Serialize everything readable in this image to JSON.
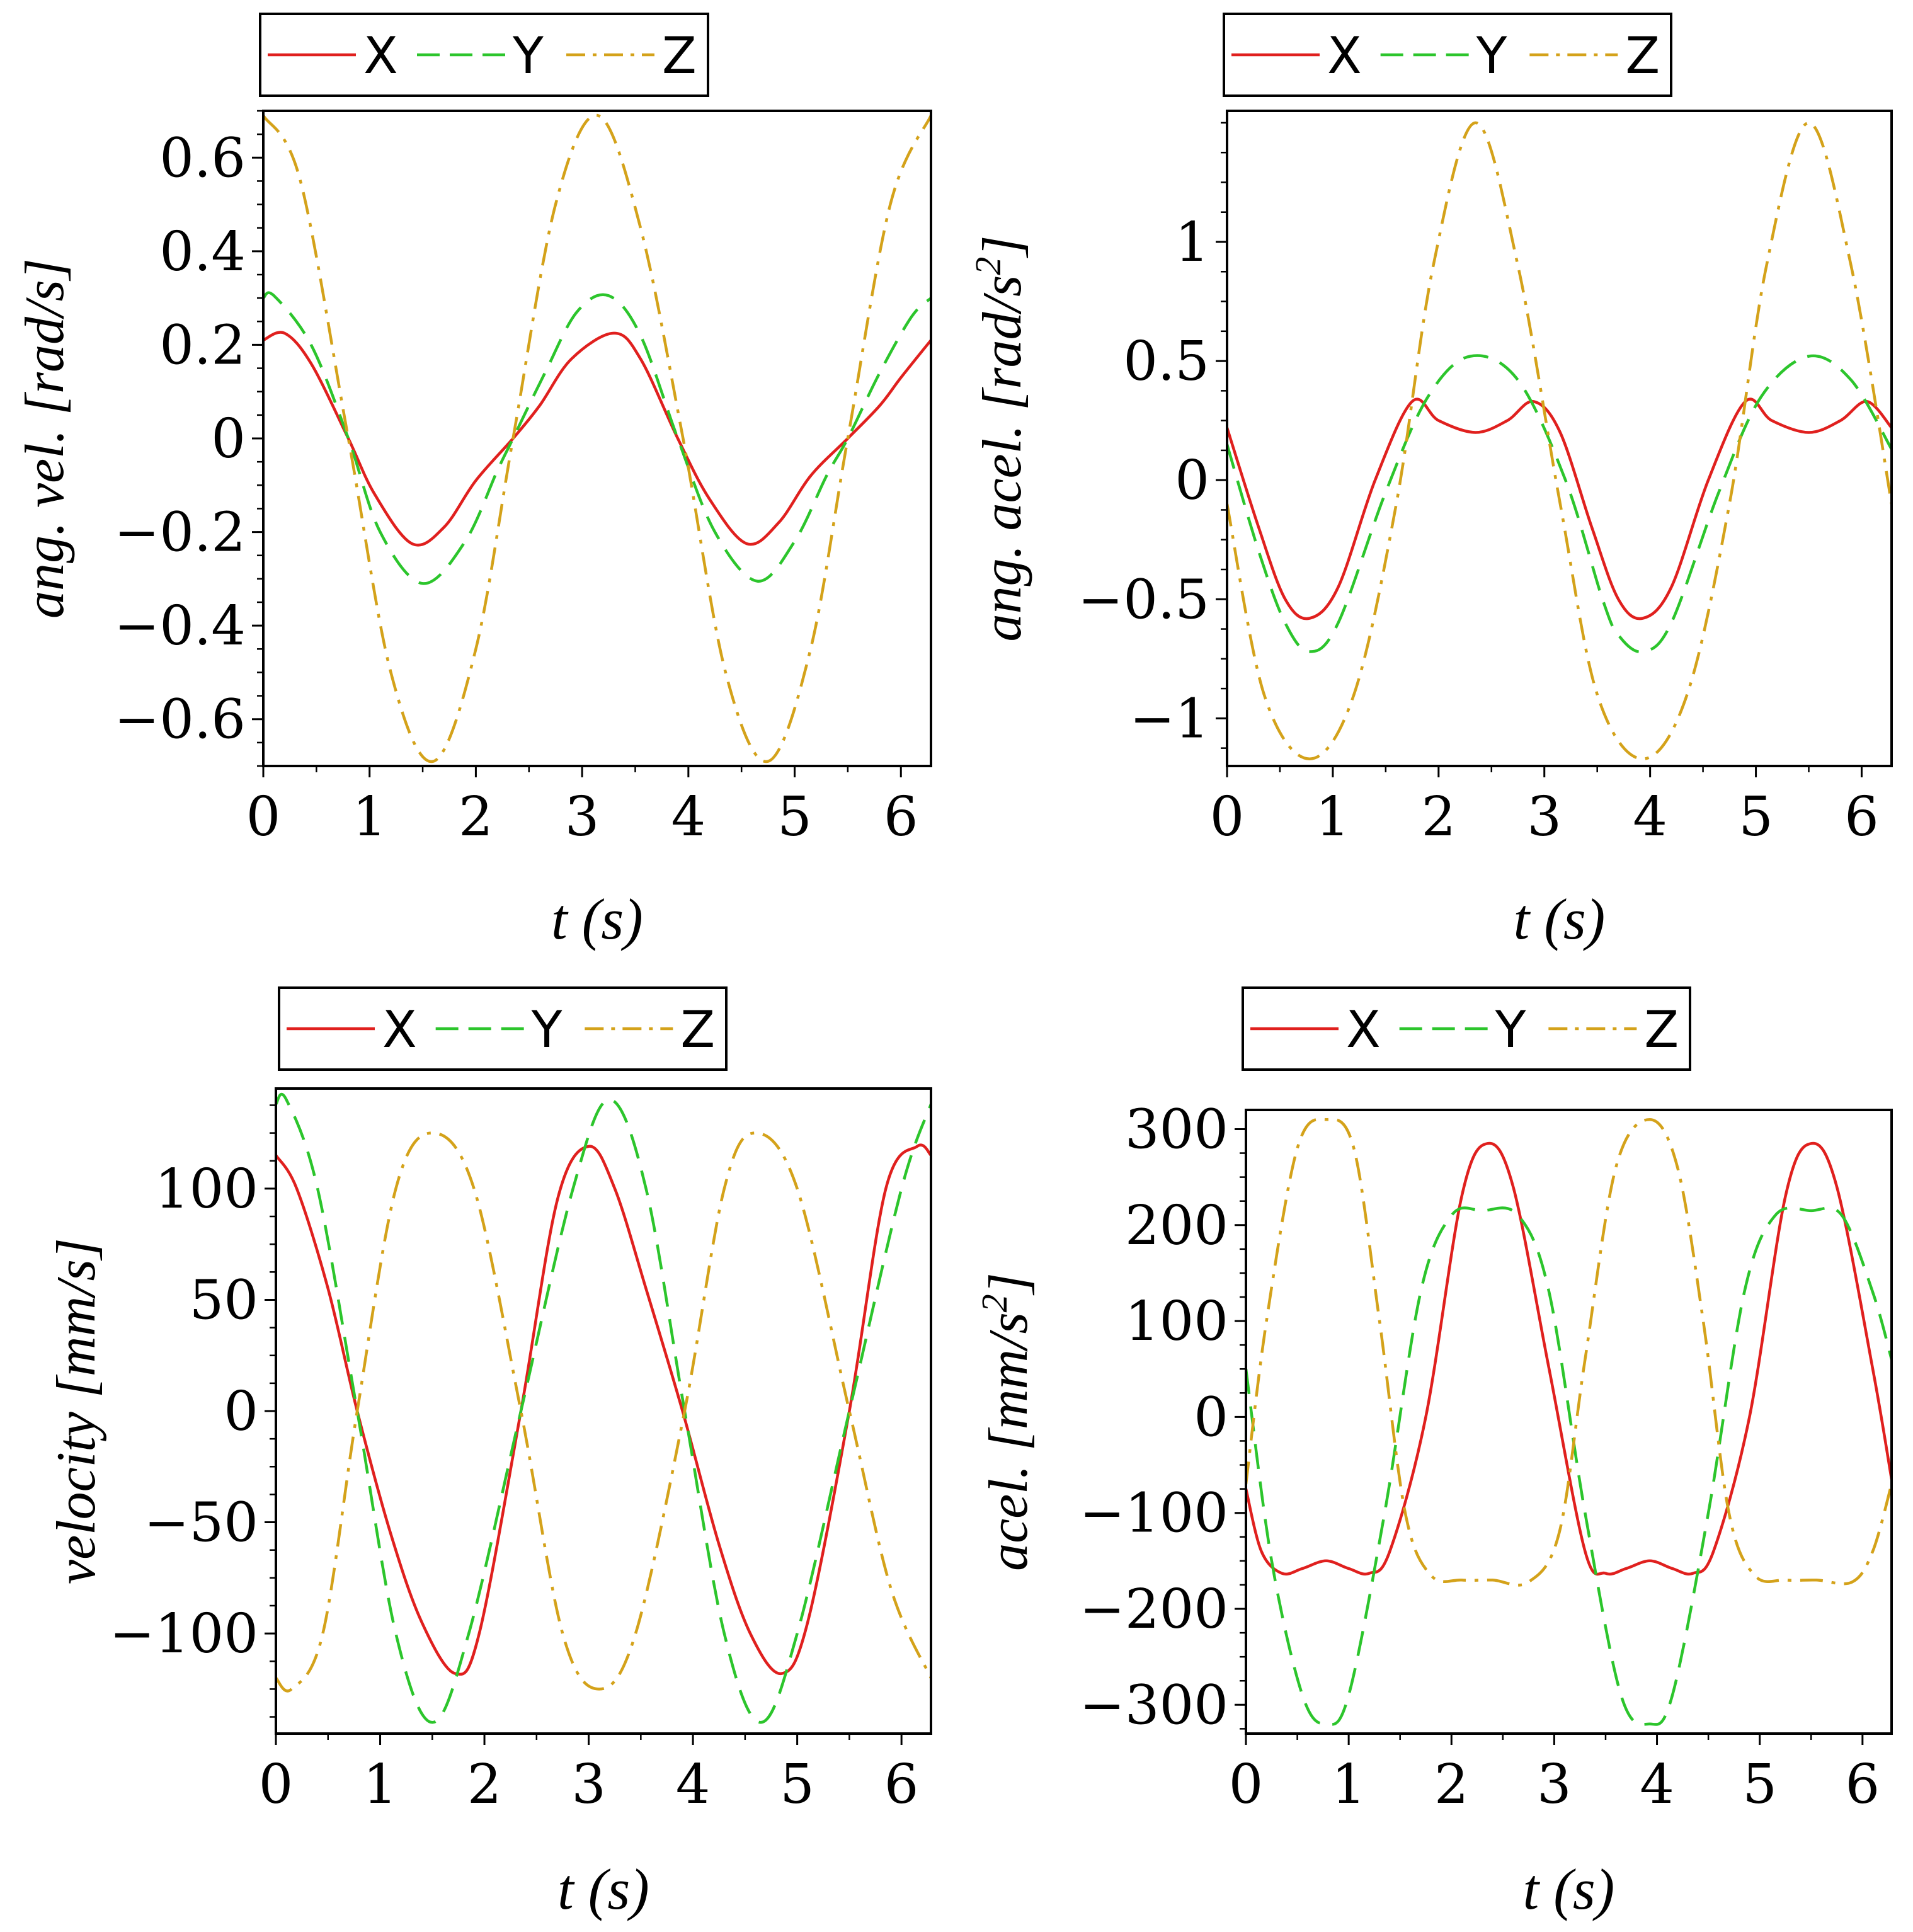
{
  "chart_data": [
    {
      "type": "line",
      "title": "",
      "xlabel": "t (s)",
      "ylabel_main": "ang. vel. [rad/s]",
      "ylabel_sup": "",
      "ylabel_tail": "",
      "xlim": [
        0,
        6.283
      ],
      "ylim": [
        -0.7,
        0.7
      ],
      "xticks": [
        0,
        1,
        2,
        3,
        4,
        5,
        6
      ],
      "xtick_labels": [
        "0",
        "1",
        "2",
        "3",
        "4",
        "5",
        "6"
      ],
      "yticks": [
        -0.6,
        -0.4,
        -0.2,
        0,
        0.2,
        0.4,
        0.6
      ],
      "ytick_labels": [
        "−0.6",
        "−0.4",
        "−0.2",
        "0",
        "0.2",
        "0.4",
        "0.6"
      ],
      "legend": [
        "X",
        "Y",
        "Z"
      ],
      "legend_position": "top-center",
      "series": [
        {
          "name": "X",
          "color": "#e0201e",
          "style": "solid",
          "x": [
            0,
            0.2,
            0.45,
            0.8,
            1.05,
            1.4,
            1.7,
            2.0,
            2.35,
            2.6,
            2.9,
            3.3,
            3.55,
            3.9,
            4.2,
            4.55,
            4.85,
            5.15,
            5.5,
            5.8,
            6.0,
            6.283
          ],
          "y": [
            0.21,
            0.225,
            0.16,
            0.0,
            -0.12,
            -0.225,
            -0.19,
            -0.09,
            0.0,
            0.07,
            0.17,
            0.225,
            0.17,
            0.0,
            -0.13,
            -0.225,
            -0.18,
            -0.08,
            0.0,
            0.07,
            0.13,
            0.21
          ]
        },
        {
          "name": "Y",
          "color": "#2cc52c",
          "style": "dashed",
          "x": [
            0,
            0.1,
            0.45,
            0.8,
            1.1,
            1.5,
            1.9,
            2.2,
            2.35,
            2.65,
            2.95,
            3.25,
            3.55,
            3.9,
            4.25,
            4.65,
            5.0,
            5.3,
            5.5,
            5.8,
            6.1,
            6.283
          ],
          "y": [
            0.3,
            0.305,
            0.2,
            0.0,
            -0.2,
            -0.31,
            -0.22,
            -0.07,
            0.0,
            0.14,
            0.27,
            0.305,
            0.22,
            0.0,
            -0.2,
            -0.305,
            -0.22,
            -0.08,
            0.0,
            0.14,
            0.26,
            0.3
          ]
        },
        {
          "name": "Z",
          "color": "#d4a21a",
          "style": "dashdot",
          "x": [
            0,
            0.35,
            0.8,
            1.2,
            1.6,
            2.0,
            2.35,
            2.75,
            3.15,
            3.55,
            3.95,
            4.35,
            4.75,
            5.15,
            5.5,
            5.9,
            6.283
          ],
          "y": [
            0.69,
            0.55,
            0.0,
            -0.5,
            -0.69,
            -0.45,
            0.0,
            0.5,
            0.69,
            0.45,
            0.0,
            -0.5,
            -0.69,
            -0.45,
            0.0,
            0.5,
            0.69
          ]
        }
      ]
    },
    {
      "type": "line",
      "title": "",
      "xlabel": "t (s)",
      "ylabel_main": "ang. acel. [rad/s",
      "ylabel_sup": "2",
      "ylabel_tail": "]",
      "xlim": [
        0,
        6.283
      ],
      "ylim": [
        -1.2,
        1.55
      ],
      "xticks": [
        0,
        1,
        2,
        3,
        4,
        5,
        6
      ],
      "xtick_labels": [
        "0",
        "1",
        "2",
        "3",
        "4",
        "5",
        "6"
      ],
      "yticks": [
        -1,
        -0.5,
        0,
        0.5,
        1
      ],
      "ytick_labels": [
        "−1",
        "−0.5",
        "0",
        "0.5",
        "1"
      ],
      "legend": [
        "X",
        "Y",
        "Z"
      ],
      "legend_position": "top-center",
      "series": [
        {
          "name": "X",
          "color": "#e0201e",
          "style": "solid",
          "x": [
            0,
            0.3,
            0.55,
            0.78,
            1.05,
            1.4,
            1.75,
            2.0,
            2.35,
            2.65,
            2.9,
            3.15,
            3.45,
            3.7,
            3.93,
            4.2,
            4.55,
            4.9,
            5.15,
            5.5,
            5.8,
            6.05,
            6.283
          ],
          "y": [
            0.22,
            -0.2,
            -0.5,
            -0.58,
            -0.45,
            0.0,
            0.33,
            0.25,
            0.2,
            0.25,
            0.33,
            0.2,
            -0.2,
            -0.5,
            -0.58,
            -0.45,
            0.0,
            0.33,
            0.25,
            0.2,
            0.25,
            0.33,
            0.22
          ]
        },
        {
          "name": "Y",
          "color": "#2cc52c",
          "style": "dashed",
          "x": [
            0,
            0.3,
            0.55,
            0.78,
            1.05,
            1.5,
            1.9,
            2.3,
            2.75,
            3.2,
            3.55,
            3.7,
            3.93,
            4.2,
            4.65,
            5.05,
            5.5,
            5.9,
            6.283
          ],
          "y": [
            0.15,
            -0.3,
            -0.6,
            -0.72,
            -0.6,
            -0.05,
            0.35,
            0.52,
            0.42,
            0.0,
            -0.5,
            -0.65,
            -0.72,
            -0.6,
            -0.05,
            0.35,
            0.52,
            0.42,
            0.13
          ]
        },
        {
          "name": "Z",
          "color": "#d4a21a",
          "style": "dashdot",
          "x": [
            0,
            0.35,
            0.78,
            1.2,
            1.6,
            1.95,
            2.35,
            2.75,
            3.15,
            3.5,
            3.93,
            4.35,
            4.75,
            5.1,
            5.5,
            5.9,
            6.283
          ],
          "y": [
            -0.1,
            -0.9,
            -1.17,
            -0.9,
            -0.1,
            0.9,
            1.5,
            0.9,
            -0.1,
            -0.9,
            -1.17,
            -0.9,
            -0.1,
            0.9,
            1.5,
            0.9,
            -0.1
          ]
        }
      ]
    },
    {
      "type": "line",
      "title": "",
      "xlabel": "t (s)",
      "ylabel_main": "velocity [mm/s]",
      "ylabel_sup": "",
      "ylabel_tail": "",
      "xlim": [
        0,
        6.283
      ],
      "ylim": [
        -145,
        145
      ],
      "xticks": [
        0,
        1,
        2,
        3,
        4,
        5,
        6
      ],
      "xtick_labels": [
        "0",
        "1",
        "2",
        "3",
        "4",
        "5",
        "6"
      ],
      "yticks": [
        -100,
        -50,
        0,
        50,
        100
      ],
      "ytick_labels": [
        "−100",
        "−50",
        "0",
        "50",
        "100"
      ],
      "legend": [
        "X",
        "Y",
        "Z"
      ],
      "legend_position": "top-center",
      "series": [
        {
          "name": "X",
          "color": "#e0201e",
          "style": "solid",
          "x": [
            0,
            0.2,
            0.5,
            0.78,
            1.1,
            1.4,
            1.72,
            1.95,
            2.35,
            2.7,
            3.0,
            3.25,
            3.55,
            3.9,
            4.25,
            4.55,
            4.85,
            5.1,
            5.5,
            5.85,
            6.15,
            6.283
          ],
          "y": [
            115,
            100,
            55,
            0,
            -55,
            -95,
            -118,
            -100,
            0,
            95,
            119,
            100,
            55,
            0,
            -60,
            -100,
            -118,
            -95,
            0,
            100,
            119,
            115
          ]
        },
        {
          "name": "Y",
          "color": "#2cc52c",
          "style": "dashed",
          "x": [
            0,
            0.1,
            0.4,
            0.78,
            1.15,
            1.5,
            1.85,
            2.35,
            2.85,
            3.2,
            3.55,
            3.92,
            4.3,
            4.65,
            5.0,
            5.5,
            6.0,
            6.283
          ],
          "y": [
            138,
            140,
            100,
            0,
            -100,
            -140,
            -100,
            0,
            100,
            140,
            100,
            0,
            -100,
            -140,
            -100,
            0,
            100,
            138
          ]
        },
        {
          "name": "Z",
          "color": "#d4a21a",
          "style": "dashdot",
          "x": [
            0,
            0.15,
            0.45,
            0.78,
            1.15,
            1.5,
            1.9,
            2.35,
            2.75,
            3.1,
            3.45,
            3.92,
            4.3,
            4.6,
            5.0,
            5.5,
            5.9,
            6.283
          ],
          "y": [
            -120,
            -125,
            -100,
            0,
            100,
            125,
            100,
            0,
            -100,
            -125,
            -100,
            0,
            100,
            125,
            100,
            0,
            -80,
            -120
          ]
        }
      ]
    },
    {
      "type": "line",
      "title": "",
      "xlabel": "t (s)",
      "ylabel_main": "acel. [mm/s",
      "ylabel_sup": "2",
      "ylabel_tail": "]",
      "xlim": [
        0,
        6.283
      ],
      "ylim": [
        -330,
        320
      ],
      "xticks": [
        0,
        1,
        2,
        3,
        4,
        5,
        6
      ],
      "xtick_labels": [
        "0",
        "1",
        "2",
        "3",
        "4",
        "5",
        "6"
      ],
      "yticks": [
        -300,
        -200,
        -100,
        0,
        100,
        200,
        300
      ],
      "ytick_labels": [
        "−300",
        "−200",
        "−100",
        "0",
        "100",
        "200",
        "300"
      ],
      "legend": [
        "X",
        "Y",
        "Z"
      ],
      "legend_position": "top-center",
      "series": [
        {
          "name": "X",
          "color": "#e0201e",
          "style": "solid",
          "x": [
            0,
            0.15,
            0.35,
            0.55,
            0.78,
            1.0,
            1.2,
            1.4,
            1.75,
            2.1,
            2.35,
            2.6,
            2.95,
            3.3,
            3.5,
            3.7,
            3.93,
            4.15,
            4.35,
            4.55,
            4.9,
            5.25,
            5.5,
            5.75,
            6.1,
            6.283
          ],
          "y": [
            -75,
            -140,
            -163,
            -158,
            -150,
            -158,
            -163,
            -140,
            0,
            230,
            285,
            240,
            50,
            -140,
            -163,
            -158,
            -150,
            -158,
            -163,
            -140,
            0,
            230,
            285,
            240,
            50,
            -65
          ]
        },
        {
          "name": "Y",
          "color": "#2cc52c",
          "style": "dashed",
          "x": [
            0,
            0.25,
            0.55,
            0.78,
            1.0,
            1.35,
            1.7,
            2.0,
            2.3,
            2.65,
            2.95,
            3.3,
            3.65,
            3.93,
            4.15,
            4.5,
            4.85,
            5.15,
            5.5,
            5.8,
            6.1,
            6.283
          ],
          "y": [
            50,
            -150,
            -290,
            -320,
            -290,
            -100,
            130,
            210,
            215,
            210,
            130,
            -100,
            -290,
            -320,
            -290,
            -100,
            130,
            210,
            215,
            210,
            130,
            60
          ]
        },
        {
          "name": "Z",
          "color": "#d4a21a",
          "style": "dashdot",
          "x": [
            0,
            0.2,
            0.5,
            0.78,
            1.05,
            1.3,
            1.55,
            1.8,
            2.1,
            2.4,
            2.75,
            3.05,
            3.3,
            3.6,
            3.93,
            4.2,
            4.45,
            4.7,
            4.95,
            5.25,
            5.55,
            5.9,
            6.1,
            6.283
          ],
          "y": [
            -70,
            100,
            280,
            310,
            280,
            100,
            -100,
            -165,
            -170,
            -170,
            -172,
            -120,
            60,
            260,
            310,
            260,
            100,
            -100,
            -165,
            -170,
            -170,
            -172,
            -140,
            -70
          ]
        }
      ]
    }
  ]
}
